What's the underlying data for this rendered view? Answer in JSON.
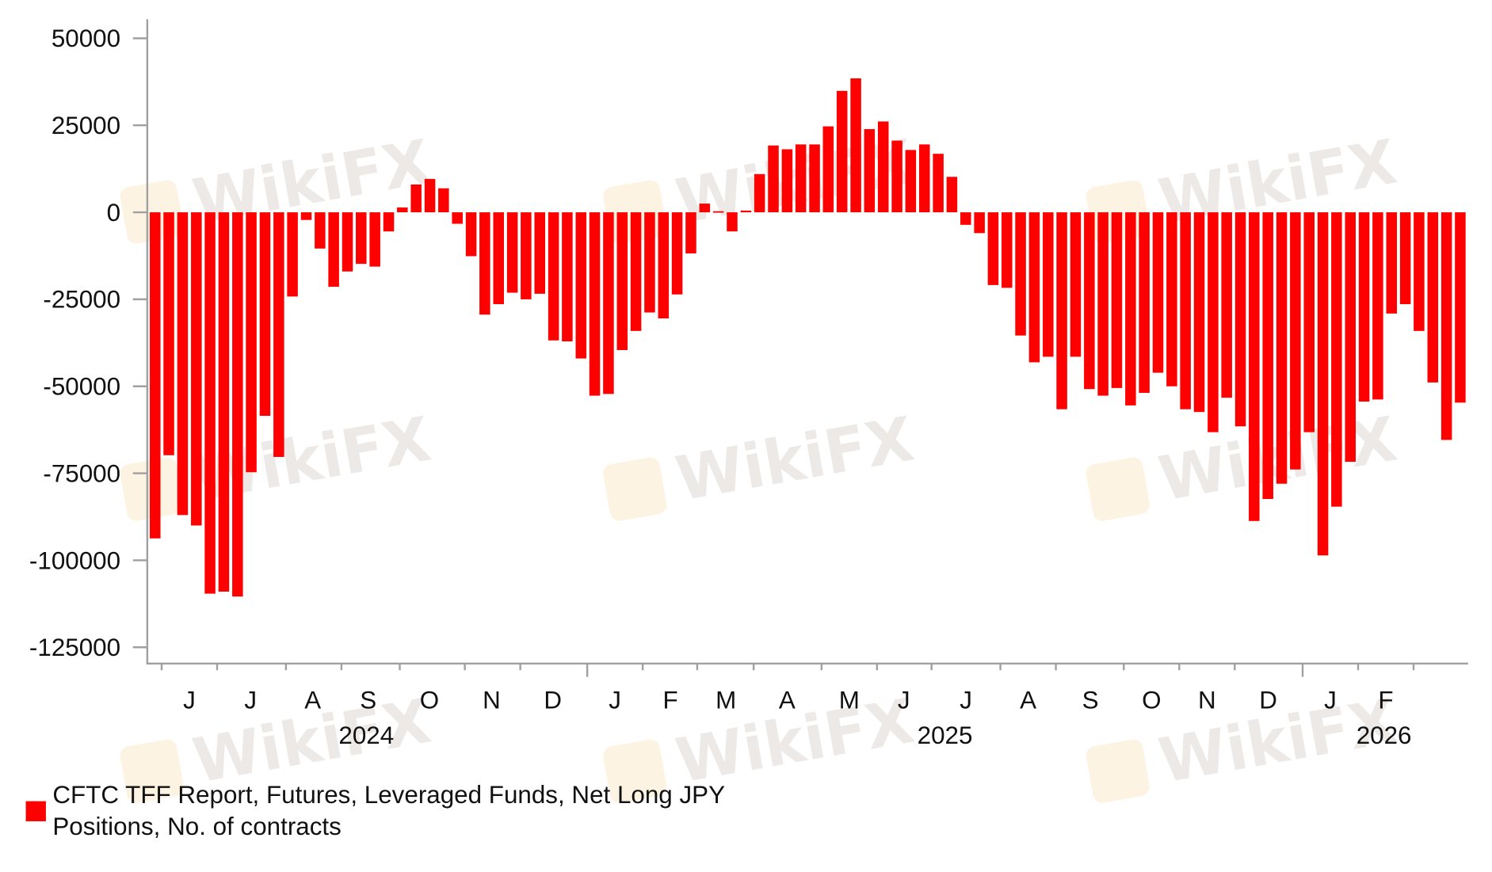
{
  "watermark": "WikiFX",
  "chart_data": {
    "type": "bar",
    "title": "",
    "xlabel": "",
    "ylabel": "",
    "ylim": [
      -135000,
      55000
    ],
    "y_ticks": [
      50000,
      25000,
      0,
      -25000,
      -50000,
      -75000,
      -100000,
      -125000
    ],
    "y_tick_labels": [
      "50000",
      "25000",
      "0",
      "-25000",
      "-50000",
      "-75000",
      "-100000",
      "-125000"
    ],
    "x_month_labels": [
      "J",
      "J",
      "A",
      "S",
      "O",
      "N",
      "D",
      "J",
      "F",
      "M",
      "A",
      "M",
      "J",
      "J",
      "A",
      "S",
      "O",
      "N",
      "D",
      "J",
      "F"
    ],
    "x_year_labels": [
      "2024",
      "2025",
      "2026"
    ],
    "grid": false,
    "legend_position": "bottom-left",
    "bar_color": "#ff0000",
    "series": [
      {
        "name": "CFTC TFF Report, Futures, Leveraged Funds, Net Long JPY Positions, No. of contracts",
        "frequency": "weekly",
        "values": [
          -93700,
          -69800,
          -87000,
          -90000,
          -109600,
          -109000,
          -110400,
          -74700,
          -58500,
          -70300,
          -24200,
          -2200,
          -10400,
          -21400,
          -17000,
          -14800,
          -15600,
          -5500,
          1400,
          8000,
          9600,
          6900,
          -3300,
          -12600,
          -29400,
          -26400,
          -23100,
          -25000,
          -23400,
          -36800,
          -37100,
          -42000,
          -52700,
          -52200,
          -39600,
          -34100,
          -28800,
          -30500,
          -23600,
          -11800,
          2500,
          300,
          -5500,
          500,
          11000,
          19200,
          18100,
          19500,
          19500,
          24700,
          34900,
          38500,
          23900,
          26100,
          20600,
          17900,
          19500,
          16800,
          10200,
          -3600,
          -6000,
          -20900,
          -21700,
          -35400,
          -43100,
          -41500,
          -56600,
          -41500,
          -50800,
          -52700,
          -50500,
          -55500,
          -51900,
          -46100,
          -50000,
          -56600,
          -57400,
          -63200,
          -53300,
          -61500,
          -88700,
          -82400,
          -78000,
          -73900,
          -63200,
          -98600,
          -84600,
          -71700,
          -54400,
          -53800,
          -29100,
          -26400,
          -34100,
          -48900,
          -65400,
          -54700
        ]
      }
    ]
  },
  "legend": {
    "line1": "CFTC TFF Report, Futures, Leveraged Funds, Net Long JPY",
    "line2": "Positions, No. of contracts"
  }
}
